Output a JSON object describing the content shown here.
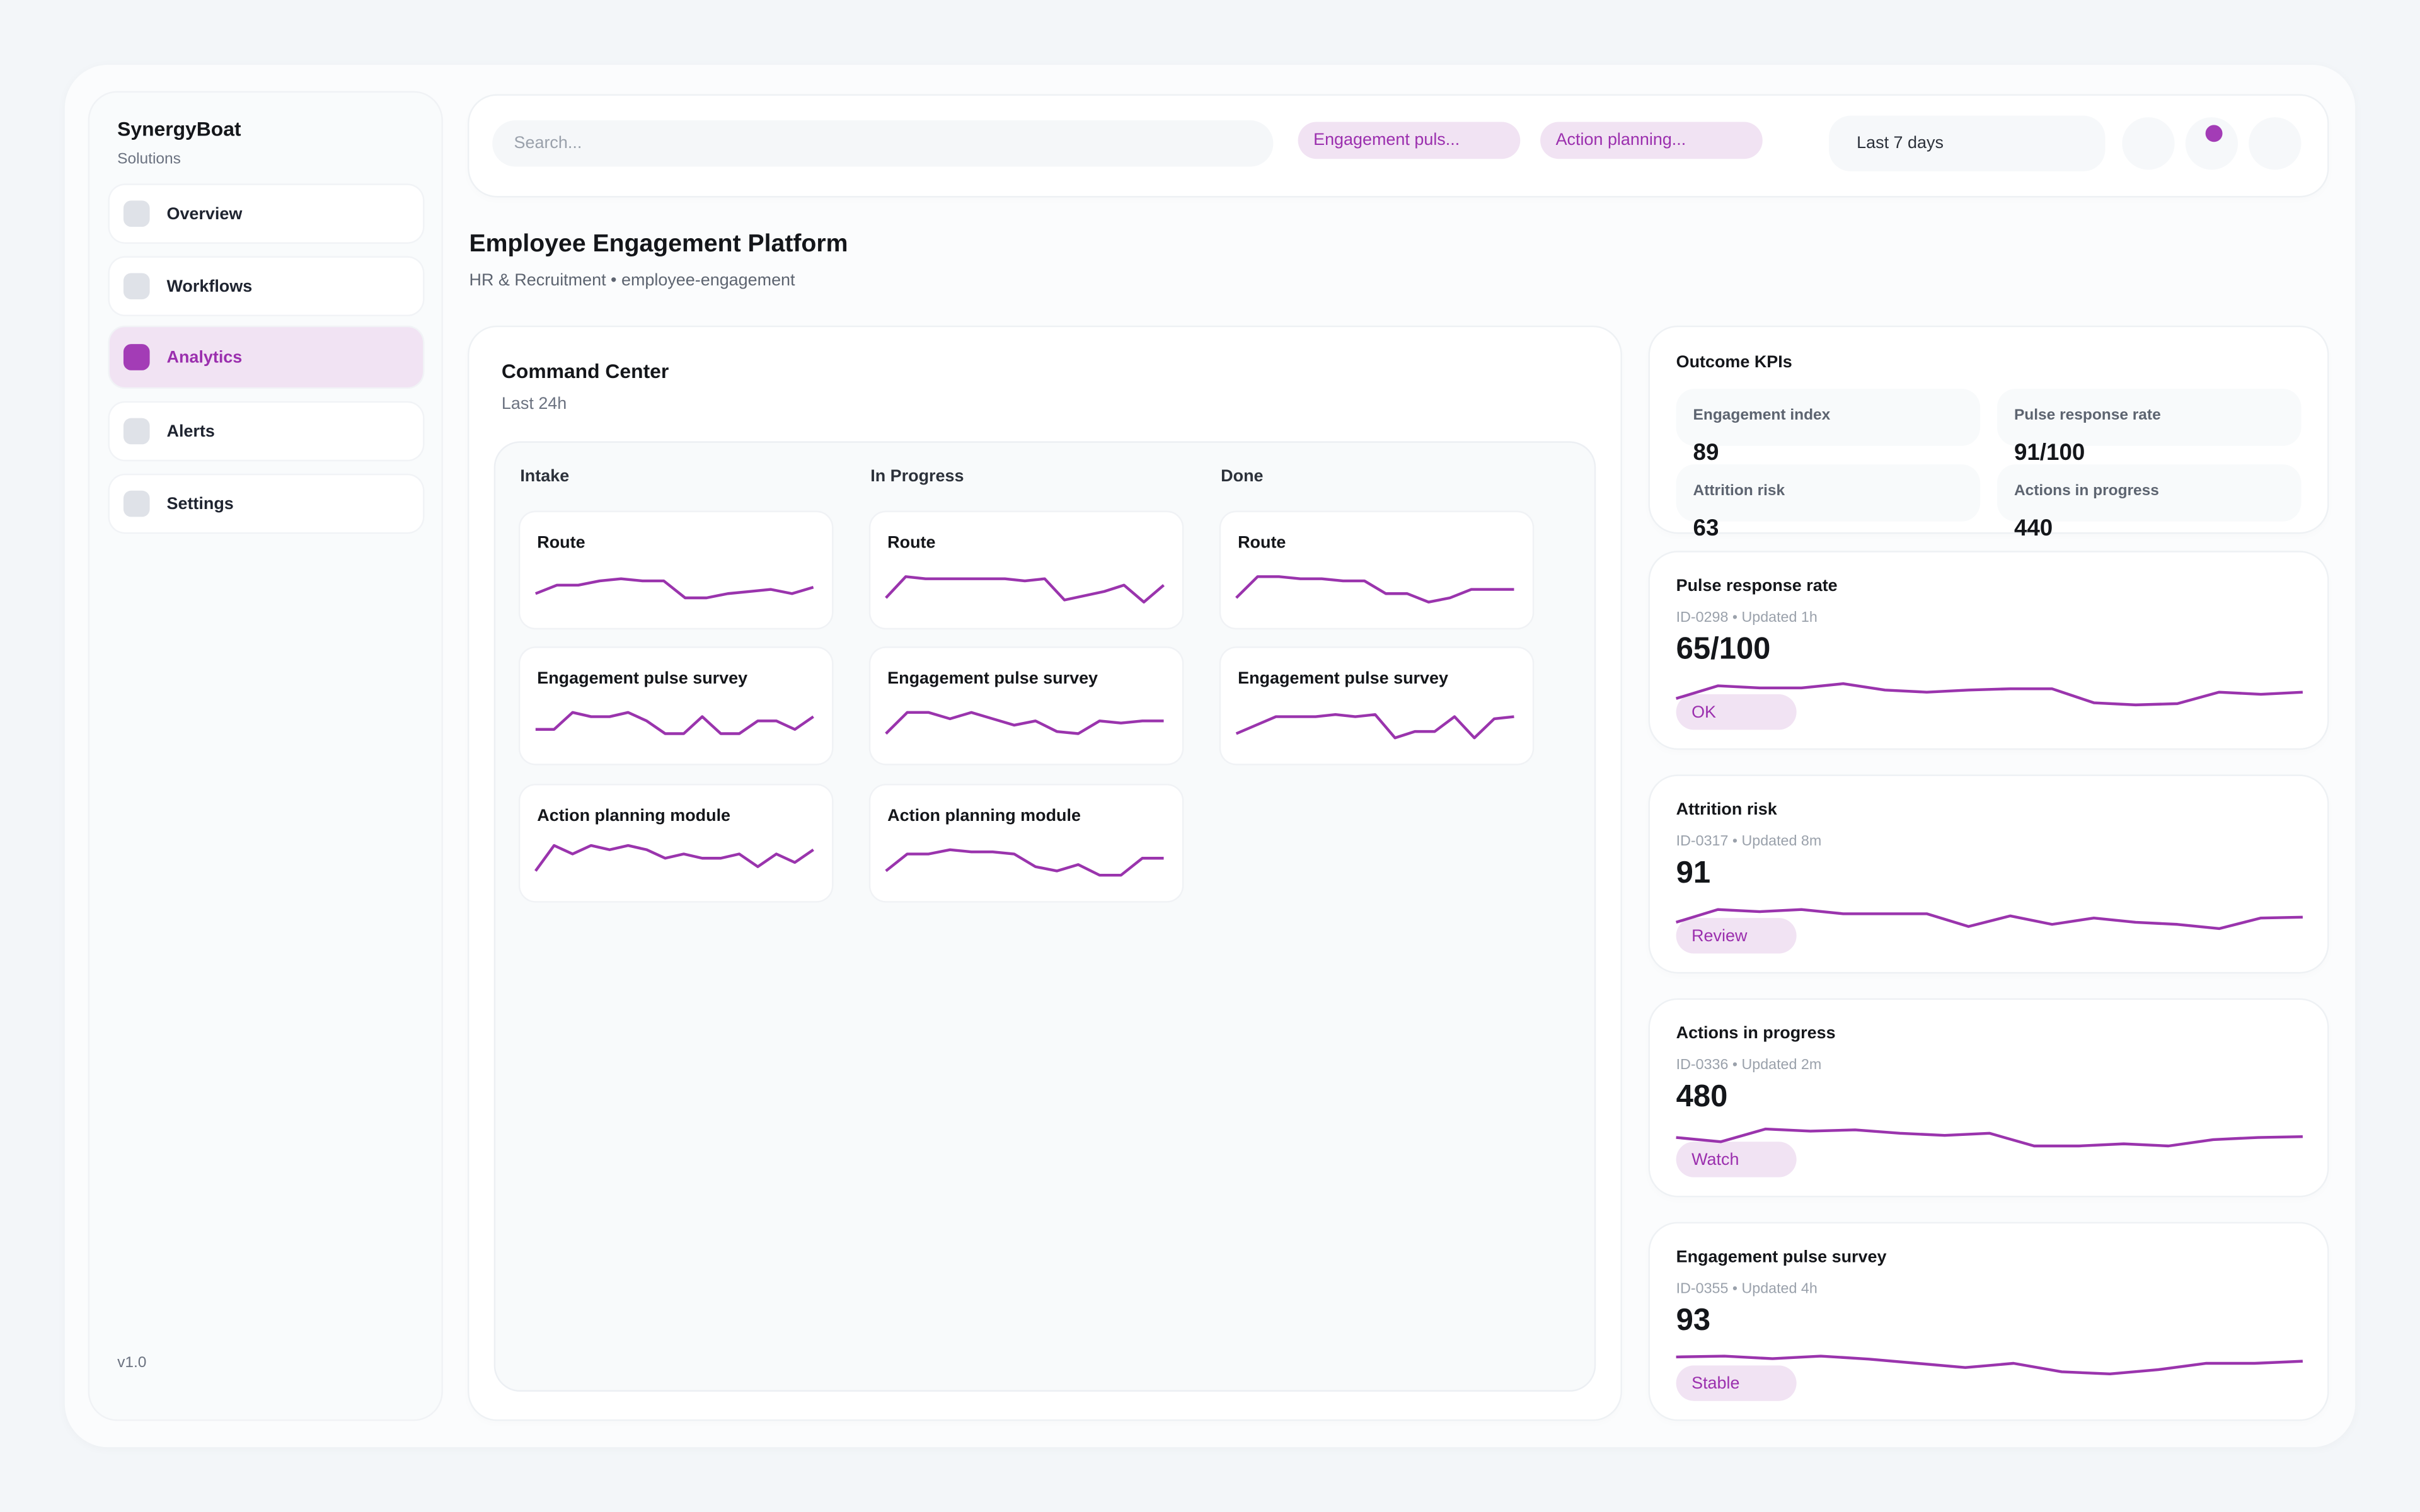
{
  "accent": "#a33cb6",
  "sidebar": {
    "brand": "SynergyBoat",
    "subtitle": "Solutions",
    "items": [
      {
        "label": "Overview",
        "active": false
      },
      {
        "label": "Workflows",
        "active": false
      },
      {
        "label": "Analytics",
        "active": true
      },
      {
        "label": "Alerts",
        "active": false
      },
      {
        "label": "Settings",
        "active": false
      }
    ],
    "version": "v1.0"
  },
  "topbar": {
    "search_placeholder": "Search...",
    "chips": [
      "Engagement puls...",
      "Action planning..."
    ],
    "date_range": "Last 7 days"
  },
  "page": {
    "title": "Employee Engagement Platform",
    "breadcrumb": "HR & Recruitment • employee-engagement"
  },
  "command_center": {
    "title": "Command Center",
    "subtitle": "Last 24h",
    "columns": [
      {
        "label": "Intake",
        "cards": [
          {
            "title": "Route",
            "trend": [
              3,
              5,
              5,
              6,
              6.5,
              6,
              6,
              2,
              2,
              3,
              3.5,
              4,
              3,
              4.5
            ]
          },
          {
            "title": "Engagement pulse survey",
            "trend": [
              3,
              3,
              7,
              6,
              6,
              7,
              5,
              2,
              2,
              6,
              2,
              2,
              5,
              5,
              3,
              6
            ]
          },
          {
            "title": "Action planning module",
            "trend": [
              2,
              8,
              6,
              8,
              7,
              8,
              7,
              5,
              6,
              5,
              5,
              6,
              3,
              6,
              4,
              7
            ]
          }
        ]
      },
      {
        "label": "In Progress",
        "cards": [
          {
            "title": "Route",
            "trend": [
              2,
              7,
              6.5,
              6.5,
              6.5,
              6.5,
              6.5,
              6,
              6.5,
              1.5,
              2.5,
              3.5,
              5,
              1,
              5
            ]
          },
          {
            "title": "Engagement pulse survey",
            "trend": [
              2,
              7,
              7,
              5.5,
              7,
              5.5,
              4,
              5,
              2.5,
              2,
              5,
              4.5,
              5,
              5
            ]
          },
          {
            "title": "Action planning module",
            "trend": [
              2,
              6,
              6,
              7,
              6.5,
              6.5,
              6,
              3,
              2,
              3.5,
              1,
              1,
              5,
              5
            ]
          }
        ]
      },
      {
        "label": "Done",
        "cards": [
          {
            "title": "Route",
            "trend": [
              2,
              7,
              7,
              6.5,
              6.5,
              6,
              6,
              3,
              3,
              1,
              2,
              4,
              4,
              4
            ]
          },
          {
            "title": "Engagement pulse survey",
            "trend": [
              2,
              4,
              6,
              6,
              6,
              6.5,
              6,
              6.5,
              1,
              2.5,
              2.5,
              6,
              1,
              5.5,
              6
            ]
          }
        ]
      }
    ]
  },
  "outcome_kpis": {
    "title": "Outcome KPIs",
    "items": [
      {
        "label": "Engagement index",
        "value": "89"
      },
      {
        "label": "Pulse response rate",
        "value": "91/100"
      },
      {
        "label": "Attrition risk",
        "value": "63"
      },
      {
        "label": "Actions in progress",
        "value": "440"
      }
    ]
  },
  "metrics": [
    {
      "title": "Pulse response rate",
      "meta": "ID-0298 • Updated 1h",
      "value": "65/100",
      "status": "OK",
      "trend": [
        3,
        6,
        5.5,
        5.5,
        6.5,
        5,
        4.5,
        5,
        5.3,
        5.3,
        2,
        1.5,
        1.8,
        4.5,
        4,
        4.5
      ]
    },
    {
      "title": "Attrition risk",
      "meta": "ID-0317 • Updated 8m",
      "value": "91",
      "status": "Review",
      "trend": [
        3,
        6,
        5.5,
        6,
        5,
        5,
        5,
        2,
        4.5,
        2.5,
        4,
        3,
        2.5,
        1.5,
        4,
        4.2
      ]
    },
    {
      "title": "Actions in progress",
      "meta": "ID-0336 • Updated 2m",
      "value": "480",
      "status": "Watch",
      "trend": [
        5,
        4,
        7,
        6.5,
        6.8,
        6,
        5.5,
        6,
        3,
        3,
        3.5,
        3,
        4.5,
        5,
        5.2
      ]
    },
    {
      "title": "Engagement pulse survey",
      "meta": "ID-0355 • Updated 4h",
      "value": "93",
      "status": "Stable",
      "trend": [
        6,
        6.2,
        5.6,
        6.2,
        5.5,
        4.5,
        3.5,
        4.5,
        2.5,
        2,
        3,
        4.5,
        4.5,
        5
      ]
    }
  ]
}
